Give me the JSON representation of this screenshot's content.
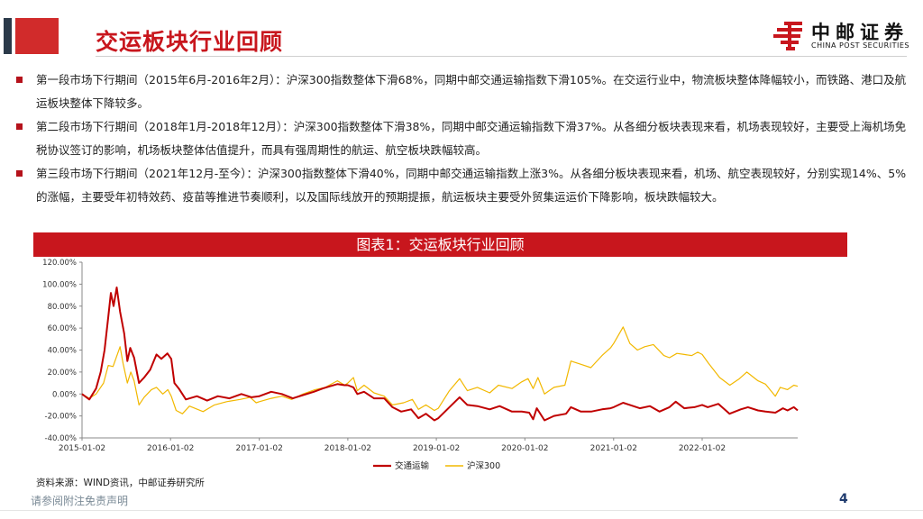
{
  "header": {
    "title": "交运板块行业回顾",
    "logo_cn": "中邮证券",
    "logo_en": "CHINA POST SECURITIES"
  },
  "bullets": [
    "第一段市场下行期间（2015年6月-2016年2月）：沪深300指数整体下滑68%，同期中邮交通运输指数下滑105%。在交运行业中，物流板块整体降幅较小，而铁路、港口及航运板块整体下降较多。",
    "第二段市场下行期间（2018年1月-2018年12月）：沪深300指数整体下滑38%，同期中邮交通运输指数下滑37%。从各细分板块表现来看，机场表现较好，主要受上海机场免税协议签订的影响，机场板块整体估值提升，而具有强周期性的航运、航空板块跌幅较高。",
    "第三段市场下行期间（2021年12月-至今）：沪深300指数整体下滑40%，同期中邮交通运输指数上涨3%。从各细分板块表现来看，机场、航空表现较好，分别实现14%、5%的涨幅，主要受年初特效药、疫苗等推进节奏顺利，以及国际线放开的预期提振，航运板块主要受外贸集运运价下降影响，板块跌幅较大。"
  ],
  "chart_title": "图表1：交运板块行业回顾",
  "source": "资料来源：WIND资讯，中邮证券研究所",
  "disclaimer": "请参阅附注免责声明",
  "page_number": "4",
  "colors": {
    "brand": "#c8161d",
    "series_transport": "#c00000",
    "series_hs300": "#f2b800"
  },
  "chart_data": {
    "type": "line",
    "title": "图表1：交运板块行业回顾",
    "xlabel": "",
    "ylabel": "",
    "ylim": [
      -0.4,
      1.2
    ],
    "y_ticks": [
      "120.00%",
      "100.00%",
      "80.00%",
      "60.00%",
      "40.00%",
      "20.00%",
      "0.00%",
      "-20.00%",
      "-40.00%"
    ],
    "x_ticks": [
      "2015-01-02",
      "2016-01-02",
      "2017-01-02",
      "2018-01-02",
      "2019-01-02",
      "2020-01-02",
      "2021-01-02",
      "2022-01-02"
    ],
    "x_range": [
      "2015-01-02",
      "2023-01-31"
    ],
    "grid": false,
    "legend_position": "bottom",
    "series": [
      {
        "name": "交通运输",
        "color": "#c00000",
        "points": [
          [
            "2015-01-02",
            0.0
          ],
          [
            "2015-02-01",
            -0.05
          ],
          [
            "2015-03-01",
            0.05
          ],
          [
            "2015-03-20",
            0.2
          ],
          [
            "2015-04-05",
            0.4
          ],
          [
            "2015-04-20",
            0.7
          ],
          [
            "2015-05-01",
            0.92
          ],
          [
            "2015-05-12",
            0.8
          ],
          [
            "2015-05-25",
            0.97
          ],
          [
            "2015-06-08",
            0.75
          ],
          [
            "2015-06-25",
            0.55
          ],
          [
            "2015-07-08",
            0.3
          ],
          [
            "2015-07-20",
            0.42
          ],
          [
            "2015-08-05",
            0.33
          ],
          [
            "2015-08-25",
            0.1
          ],
          [
            "2015-09-15",
            0.15
          ],
          [
            "2015-10-10",
            0.22
          ],
          [
            "2015-11-05",
            0.36
          ],
          [
            "2015-11-25",
            0.32
          ],
          [
            "2015-12-20",
            0.37
          ],
          [
            "2016-01-05",
            0.32
          ],
          [
            "2016-01-18",
            0.1
          ],
          [
            "2016-02-05",
            0.05
          ],
          [
            "2016-03-05",
            -0.05
          ],
          [
            "2016-04-20",
            -0.02
          ],
          [
            "2016-06-01",
            -0.06
          ],
          [
            "2016-07-15",
            -0.02
          ],
          [
            "2016-09-01",
            -0.04
          ],
          [
            "2016-10-20",
            0.0
          ],
          [
            "2016-12-01",
            -0.03
          ],
          [
            "2017-01-02",
            -0.02
          ],
          [
            "2017-02-20",
            0.02
          ],
          [
            "2017-04-05",
            0.0
          ],
          [
            "2017-05-20",
            -0.04
          ],
          [
            "2017-07-01",
            -0.01
          ],
          [
            "2017-08-15",
            0.02
          ],
          [
            "2017-09-20",
            0.05
          ],
          [
            "2017-10-20",
            0.07
          ],
          [
            "2017-11-20",
            0.09
          ],
          [
            "2017-12-20",
            0.08
          ],
          [
            "2018-01-02",
            0.08
          ],
          [
            "2018-01-25",
            0.06
          ],
          [
            "2018-02-10",
            0.0
          ],
          [
            "2018-03-10",
            0.02
          ],
          [
            "2018-04-20",
            -0.04
          ],
          [
            "2018-06-01",
            -0.04
          ],
          [
            "2018-07-05",
            -0.12
          ],
          [
            "2018-08-10",
            -0.16
          ],
          [
            "2018-09-20",
            -0.14
          ],
          [
            "2018-10-20",
            -0.22
          ],
          [
            "2018-11-20",
            -0.18
          ],
          [
            "2018-12-25",
            -0.24
          ],
          [
            "2019-01-10",
            -0.22
          ],
          [
            "2019-02-25",
            -0.12
          ],
          [
            "2019-04-08",
            -0.03
          ],
          [
            "2019-05-10",
            -0.1
          ],
          [
            "2019-06-20",
            -0.11
          ],
          [
            "2019-08-10",
            -0.14
          ],
          [
            "2019-09-20",
            -0.11
          ],
          [
            "2019-11-10",
            -0.16
          ],
          [
            "2019-12-20",
            -0.16
          ],
          [
            "2020-01-20",
            -0.17
          ],
          [
            "2020-02-05",
            -0.23
          ],
          [
            "2020-02-20",
            -0.13
          ],
          [
            "2020-03-23",
            -0.24
          ],
          [
            "2020-05-01",
            -0.2
          ],
          [
            "2020-06-20",
            -0.18
          ],
          [
            "2020-07-10",
            -0.12
          ],
          [
            "2020-08-20",
            -0.16
          ],
          [
            "2020-10-01",
            -0.16
          ],
          [
            "2020-11-15",
            -0.14
          ],
          [
            "2020-12-20",
            -0.13
          ],
          [
            "2021-01-02",
            -0.12
          ],
          [
            "2021-02-10",
            -0.08
          ],
          [
            "2021-03-10",
            -0.1
          ],
          [
            "2021-04-20",
            -0.13
          ],
          [
            "2021-06-01",
            -0.11
          ],
          [
            "2021-07-10",
            -0.16
          ],
          [
            "2021-08-20",
            -0.12
          ],
          [
            "2021-09-15",
            -0.07
          ],
          [
            "2021-10-20",
            -0.13
          ],
          [
            "2021-12-01",
            -0.12
          ],
          [
            "2022-01-02",
            -0.1
          ],
          [
            "2022-01-25",
            -0.12
          ],
          [
            "2022-03-10",
            -0.09
          ],
          [
            "2022-04-25",
            -0.18
          ],
          [
            "2022-06-10",
            -0.14
          ],
          [
            "2022-07-10",
            -0.12
          ],
          [
            "2022-08-20",
            -0.15
          ],
          [
            "2022-09-20",
            -0.16
          ],
          [
            "2022-10-31",
            -0.17
          ],
          [
            "2022-12-01",
            -0.13
          ],
          [
            "2022-12-20",
            -0.15
          ],
          [
            "2023-01-15",
            -0.12
          ],
          [
            "2023-01-31",
            -0.15
          ]
        ]
      },
      {
        "name": "沪深300",
        "color": "#f2b800",
        "points": [
          [
            "2015-01-02",
            0.0
          ],
          [
            "2015-02-01",
            -0.04
          ],
          [
            "2015-03-01",
            0.0
          ],
          [
            "2015-04-01",
            0.1
          ],
          [
            "2015-04-20",
            0.26
          ],
          [
            "2015-05-10",
            0.25
          ],
          [
            "2015-06-08",
            0.43
          ],
          [
            "2015-06-20",
            0.28
          ],
          [
            "2015-07-08",
            0.1
          ],
          [
            "2015-07-22",
            0.2
          ],
          [
            "2015-08-05",
            0.12
          ],
          [
            "2015-08-25",
            -0.1
          ],
          [
            "2015-09-15",
            -0.03
          ],
          [
            "2015-10-15",
            0.04
          ],
          [
            "2015-11-05",
            0.06
          ],
          [
            "2015-12-01",
            0.0
          ],
          [
            "2015-12-22",
            0.04
          ],
          [
            "2016-01-05",
            -0.02
          ],
          [
            "2016-01-25",
            -0.15
          ],
          [
            "2016-02-20",
            -0.18
          ],
          [
            "2016-03-20",
            -0.11
          ],
          [
            "2016-05-15",
            -0.16
          ],
          [
            "2016-07-01",
            -0.1
          ],
          [
            "2016-08-20",
            -0.07
          ],
          [
            "2016-10-15",
            -0.05
          ],
          [
            "2016-11-25",
            -0.03
          ],
          [
            "2016-12-20",
            -0.08
          ],
          [
            "2017-01-02",
            -0.07
          ],
          [
            "2017-02-20",
            -0.04
          ],
          [
            "2017-04-05",
            -0.02
          ],
          [
            "2017-05-15",
            -0.05
          ],
          [
            "2017-07-01",
            0.0
          ],
          [
            "2017-08-20",
            0.04
          ],
          [
            "2017-10-01",
            0.06
          ],
          [
            "2017-11-20",
            0.12
          ],
          [
            "2017-12-20",
            0.08
          ],
          [
            "2018-01-02",
            0.1
          ],
          [
            "2018-01-25",
            0.15
          ],
          [
            "2018-02-10",
            0.03
          ],
          [
            "2018-03-10",
            0.08
          ],
          [
            "2018-04-20",
            0.01
          ],
          [
            "2018-06-01",
            -0.02
          ],
          [
            "2018-07-05",
            -0.1
          ],
          [
            "2018-08-20",
            -0.08
          ],
          [
            "2018-09-25",
            -0.05
          ],
          [
            "2018-10-20",
            -0.14
          ],
          [
            "2018-11-20",
            -0.1
          ],
          [
            "2018-12-25",
            -0.15
          ],
          [
            "2019-01-10",
            -0.13
          ],
          [
            "2019-02-25",
            0.03
          ],
          [
            "2019-04-08",
            0.14
          ],
          [
            "2019-05-10",
            0.03
          ],
          [
            "2019-06-20",
            0.06
          ],
          [
            "2019-08-10",
            0.01
          ],
          [
            "2019-09-15",
            0.08
          ],
          [
            "2019-11-10",
            0.05
          ],
          [
            "2019-12-20",
            0.11
          ],
          [
            "2020-01-15",
            0.14
          ],
          [
            "2020-02-05",
            0.05
          ],
          [
            "2020-02-25",
            0.15
          ],
          [
            "2020-03-23",
            0.0
          ],
          [
            "2020-05-01",
            0.06
          ],
          [
            "2020-06-15",
            0.08
          ],
          [
            "2020-07-10",
            0.3
          ],
          [
            "2020-08-20",
            0.27
          ],
          [
            "2020-09-30",
            0.24
          ],
          [
            "2020-11-15",
            0.35
          ],
          [
            "2020-12-20",
            0.42
          ],
          [
            "2021-01-02",
            0.46
          ],
          [
            "2021-02-10",
            0.61
          ],
          [
            "2021-03-10",
            0.46
          ],
          [
            "2021-04-10",
            0.4
          ],
          [
            "2021-05-10",
            0.43
          ],
          [
            "2021-06-15",
            0.45
          ],
          [
            "2021-07-28",
            0.35
          ],
          [
            "2021-08-20",
            0.33
          ],
          [
            "2021-09-20",
            0.37
          ],
          [
            "2021-10-20",
            0.36
          ],
          [
            "2021-11-20",
            0.35
          ],
          [
            "2021-12-15",
            0.38
          ],
          [
            "2022-01-02",
            0.36
          ],
          [
            "2022-01-28",
            0.28
          ],
          [
            "2022-03-15",
            0.15
          ],
          [
            "2022-04-26",
            0.08
          ],
          [
            "2022-06-05",
            0.14
          ],
          [
            "2022-07-05",
            0.2
          ],
          [
            "2022-08-20",
            0.12
          ],
          [
            "2022-09-20",
            0.09
          ],
          [
            "2022-10-31",
            -0.02
          ],
          [
            "2022-11-20",
            0.06
          ],
          [
            "2022-12-20",
            0.04
          ],
          [
            "2023-01-15",
            0.08
          ],
          [
            "2023-01-31",
            0.07
          ]
        ]
      }
    ]
  }
}
